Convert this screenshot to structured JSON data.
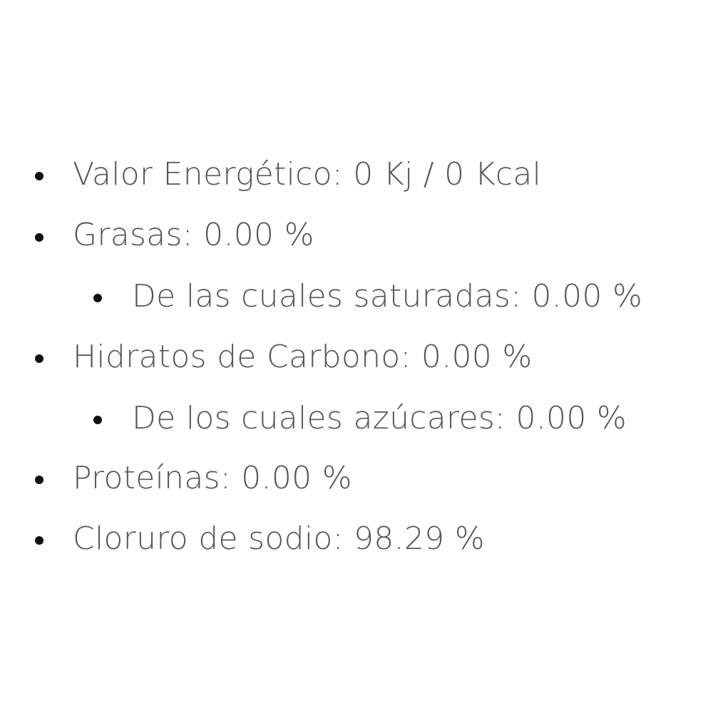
{
  "nutrition_list": [
    {
      "text": "Valor Energético: 0 Kj / 0 Kcal",
      "level": 1
    },
    {
      "text": "Grasas: 0.00 %",
      "level": 1
    },
    {
      "text": "De las cuales saturadas: 0.00 %",
      "level": 2
    },
    {
      "text": "Hidratos de Carbono: 0.00 %",
      "level": 1
    },
    {
      "text": "De los cuales azúcares: 0.00 %",
      "level": 2
    },
    {
      "text": "Proteínas: 0.00 %",
      "level": 1
    },
    {
      "text": "Cloruro de sodio: 98.29 %",
      "level": 1
    }
  ]
}
